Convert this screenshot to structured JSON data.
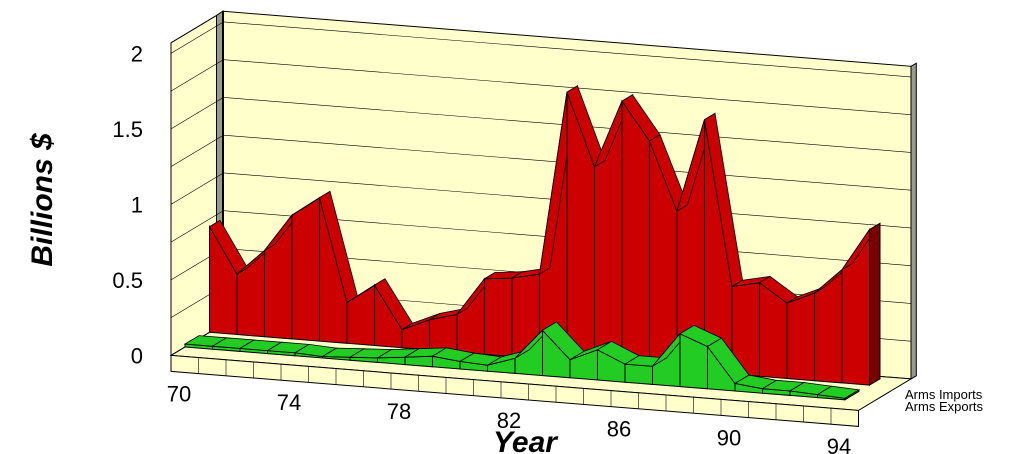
{
  "chart_data": {
    "type": "area",
    "xlabel": "Year",
    "ylabel": "Billions $",
    "ylim": [
      0,
      2
    ],
    "yticks": [
      "0",
      "0.5",
      "1",
      "1.5",
      "2"
    ],
    "xticks": [
      "70",
      "74",
      "78",
      "82",
      "86",
      "90",
      "94"
    ],
    "grid": true,
    "legend": "bottom-right",
    "years": [
      70,
      71,
      72,
      73,
      74,
      75,
      76,
      77,
      78,
      79,
      80,
      81,
      82,
      83,
      84,
      85,
      86,
      87,
      88,
      89,
      90,
      91,
      92,
      93,
      94
    ],
    "series": [
      {
        "name": "Arms Imports",
        "color": "#cc0000",
        "values": [
          0.7,
          0.4,
          0.57,
          0.82,
          0.95,
          0.27,
          0.4,
          0.12,
          0.2,
          0.25,
          0.5,
          0.52,
          0.56,
          1.78,
          1.3,
          1.75,
          1.5,
          1.05,
          1.67,
          0.58,
          0.62,
          0.5,
          0.58,
          0.75,
          1.03
        ]
      },
      {
        "name": "Arms Exports",
        "color": "#22cc22",
        "values": [
          0.02,
          0.02,
          0.02,
          0.02,
          0.02,
          0.01,
          0.02,
          0.03,
          0.05,
          0.07,
          0.05,
          0.04,
          0.1,
          0.3,
          0.12,
          0.2,
          0.12,
          0.12,
          0.35,
          0.28,
          0.05,
          0.03,
          0.03,
          0.02,
          0.01
        ]
      }
    ]
  }
}
